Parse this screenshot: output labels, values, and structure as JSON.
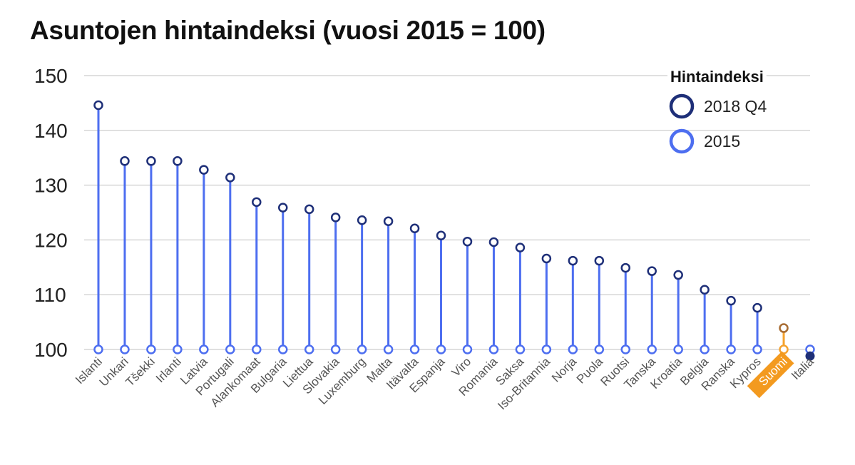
{
  "chart_data": {
    "type": "lollipop",
    "title": "Asuntojen hintaindeksi (vuosi 2015 = 100)",
    "ylim": [
      100,
      150
    ],
    "yticks": [
      100,
      110,
      120,
      130,
      140,
      150
    ],
    "grid": true,
    "legend": {
      "title": "Hintaindeksi",
      "placement": "top-right",
      "entries": [
        {
          "label": "2018 Q4",
          "color": "#1e2f78"
        },
        {
          "label": "2015",
          "color": "#4d6ef0"
        }
      ]
    },
    "categories": [
      "Islanti",
      "Unkari",
      "Tšekki",
      "Irlanti",
      "Latvia",
      "Portugali",
      "Alankomaat",
      "Bulgaria",
      "Liettua",
      "Slovakia",
      "Luxemburg",
      "Malta",
      "Itävalta",
      "Espanja",
      "Viro",
      "Romania",
      "Saksa",
      "Iso-Britannia",
      "Norja",
      "Puola",
      "Ruotsi",
      "Tanska",
      "Kroatia",
      "Belgia",
      "Ranska",
      "Kypros",
      "Suomi",
      "Italia"
    ],
    "highlight": "Suomi",
    "series": [
      {
        "name": "2018 Q4",
        "values": [
          144.6,
          134.4,
          134.4,
          134.4,
          132.8,
          131.4,
          126.9,
          125.9,
          125.6,
          124.1,
          123.6,
          123.4,
          122.1,
          120.8,
          119.7,
          119.6,
          118.6,
          116.6,
          116.2,
          116.2,
          114.9,
          114.3,
          113.6,
          110.9,
          108.9,
          107.6,
          103.9,
          98.8
        ]
      },
      {
        "name": "2015",
        "values": [
          100,
          100,
          100,
          100,
          100,
          100,
          100,
          100,
          100,
          100,
          100,
          100,
          100,
          100,
          100,
          100,
          100,
          100,
          100,
          100,
          100,
          100,
          100,
          100,
          100,
          100,
          100,
          100
        ]
      }
    ],
    "colors": {
      "stem": "#4d6ef0",
      "dot_2018": "#1e2f78",
      "dot_2015": "#4d6ef0",
      "highlight_stem": "#f5a22e",
      "highlight_dot_2018": "#a86c32",
      "highlight_dot_2015": "#f5a22e",
      "highlight_label_bg": "#f39a1f",
      "grid": "#d6d6d6",
      "italia_dot": "#1e2f78"
    }
  }
}
